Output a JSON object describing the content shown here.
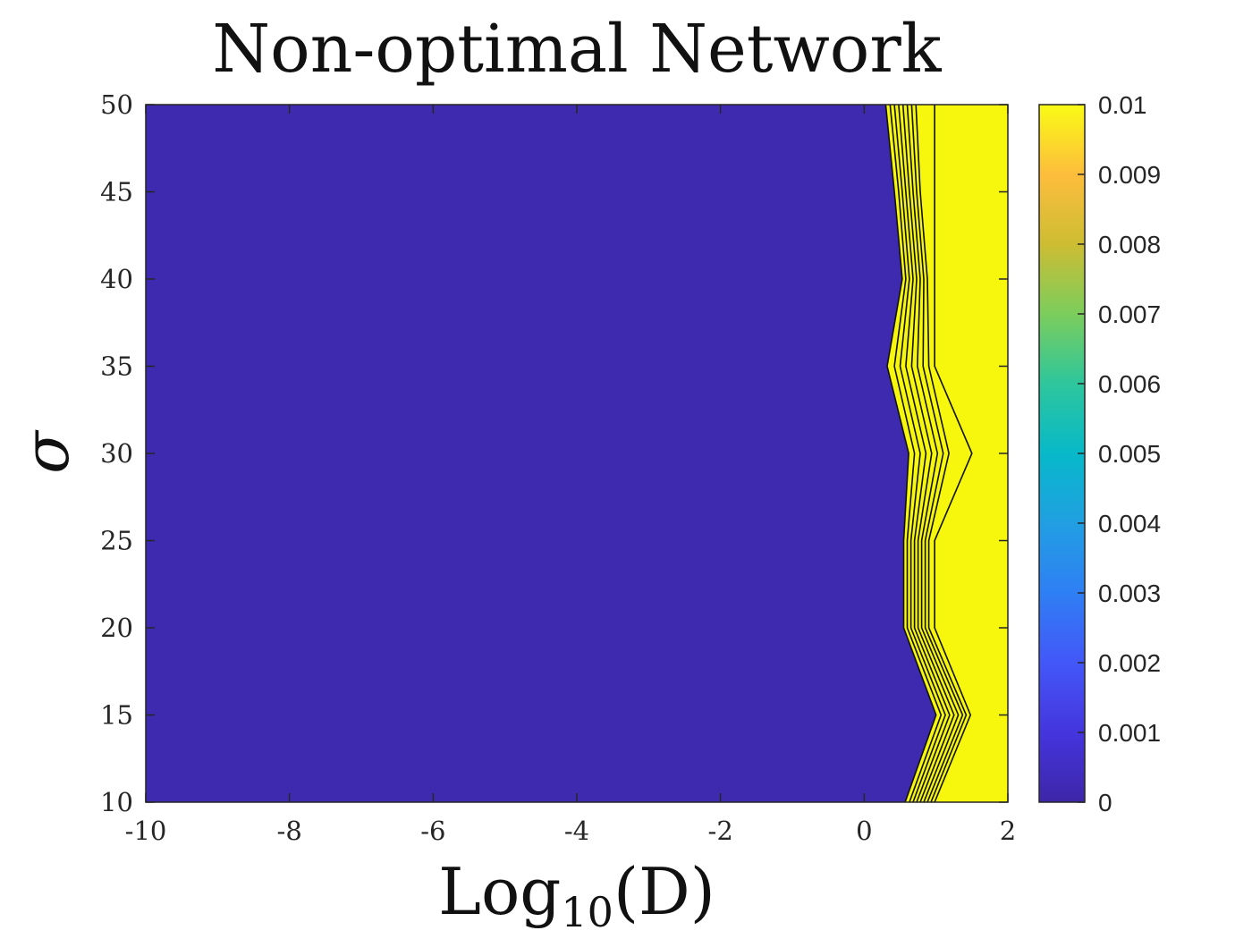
{
  "chart_data": {
    "type": "contour",
    "title": "Non-optimal Network",
    "xlabel_main": "Log",
    "xlabel_sub": "10",
    "xlabel_arg": "(D)",
    "ylabel": "σ",
    "xlim": [
      -10,
      2
    ],
    "ylim": [
      10,
      50
    ],
    "xticks": [
      -10,
      -8,
      -6,
      -4,
      -2,
      0,
      2
    ],
    "xtick_labels": [
      "-10",
      "-8",
      "-6",
      "-4",
      "-2",
      "0",
      "2"
    ],
    "yticks": [
      10,
      15,
      20,
      25,
      30,
      35,
      40,
      45,
      50
    ],
    "ytick_labels": [
      "10",
      "15",
      "20",
      "25",
      "30",
      "35",
      "40",
      "45",
      "50"
    ],
    "colorbar": {
      "range": [
        0,
        0.01
      ],
      "ticks": [
        0,
        0.001,
        0.002,
        0.003,
        0.004,
        0.005,
        0.006,
        0.007,
        0.008,
        0.009,
        0.01
      ],
      "tick_labels": [
        "0",
        "0.001",
        "0.002",
        "0.003",
        "0.004",
        "0.005",
        "0.006",
        "0.007",
        "0.008",
        "0.009",
        "0.01"
      ],
      "colormap": "parula"
    },
    "low_color": "#3d2aae",
    "high_color": "#f7f70e",
    "sigma_levels": [
      10,
      15,
      20,
      25,
      30,
      35,
      40,
      45,
      50
    ],
    "contour_lines": [
      {
        "level": 0.001,
        "logD": [
          0.57,
          1.0,
          0.55,
          0.55,
          0.62,
          0.32,
          0.53,
          0.42,
          0.3
        ]
      },
      {
        "level": 0.002,
        "logD": [
          0.63,
          1.07,
          0.6,
          0.6,
          0.7,
          0.42,
          0.58,
          0.48,
          0.36
        ]
      },
      {
        "level": 0.003,
        "logD": [
          0.68,
          1.13,
          0.65,
          0.65,
          0.78,
          0.5,
          0.63,
          0.53,
          0.42
        ]
      },
      {
        "level": 0.004,
        "logD": [
          0.73,
          1.19,
          0.7,
          0.7,
          0.86,
          0.58,
          0.68,
          0.58,
          0.48
        ]
      },
      {
        "level": 0.005,
        "logD": [
          0.78,
          1.25,
          0.75,
          0.75,
          0.94,
          0.66,
          0.73,
          0.63,
          0.54
        ]
      },
      {
        "level": 0.006,
        "logD": [
          0.83,
          1.31,
          0.8,
          0.8,
          1.02,
          0.74,
          0.78,
          0.68,
          0.6
        ]
      },
      {
        "level": 0.007,
        "logD": [
          0.88,
          1.37,
          0.85,
          0.85,
          1.1,
          0.82,
          0.83,
          0.73,
          0.66
        ]
      },
      {
        "level": 0.008,
        "logD": [
          0.93,
          1.42,
          0.9,
          0.9,
          1.18,
          0.9,
          0.88,
          0.78,
          0.72
        ]
      },
      {
        "level": 0.009,
        "logD": [
          0.98,
          1.48,
          0.98,
          0.98,
          1.5,
          0.98,
          0.98,
          0.98,
          0.98
        ]
      }
    ]
  }
}
